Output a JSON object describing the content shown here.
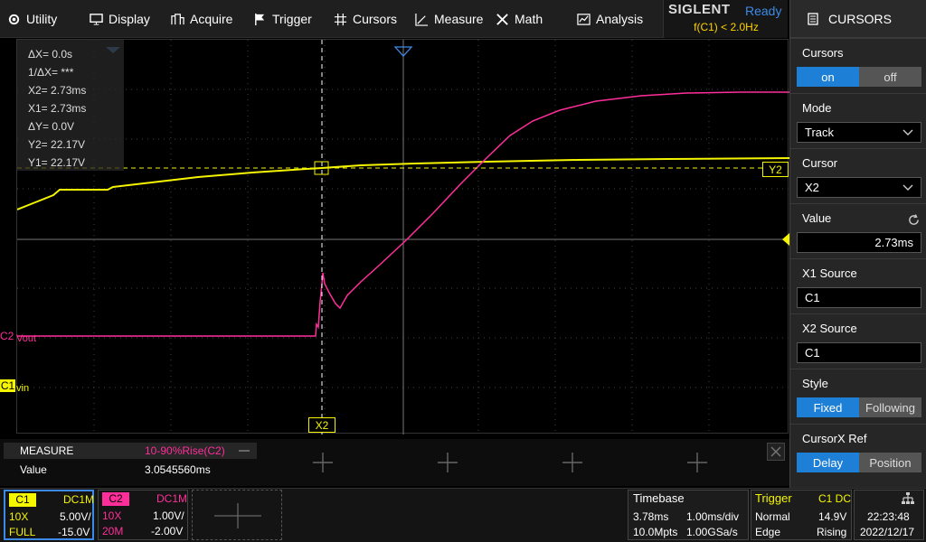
{
  "menu": {
    "utility": "Utility",
    "display": "Display",
    "acquire": "Acquire",
    "trigger": "Trigger",
    "cursors": "Cursors",
    "measure": "Measure",
    "math": "Math",
    "analysis": "Analysis"
  },
  "brand": {
    "logo": "SIGLENT",
    "status": "Ready",
    "trigger_freq": "f(C1) < 2.0Hz"
  },
  "panel": {
    "title": "CURSORS",
    "cursors_label": "Cursors",
    "cursors_on": "on",
    "cursors_off": "off",
    "mode_label": "Mode",
    "mode_value": "Track",
    "cursor_label": "Cursor",
    "cursor_value": "X2",
    "value_label": "Value",
    "value_value": "2.73ms",
    "x1source_label": "X1 Source",
    "x1source_value": "C1",
    "x2source_label": "X2 Source",
    "x2source_value": "C1",
    "style_label": "Style",
    "style_fixed": "Fixed",
    "style_following": "Following",
    "cursorxref_label": "CursorX Ref",
    "ref_delay": "Delay",
    "ref_position": "Position"
  },
  "readout": {
    "dx": "ΔX= 0.0s",
    "inv_dx": "1/ΔX= ***",
    "x2": "X2= 2.73ms",
    "x1": "X1= 2.73ms",
    "dy": "ΔY= 0.0V",
    "y2": "Y2= 22.17V",
    "y1": "Y1= 22.17V"
  },
  "plot": {
    "x2_tag": "X2",
    "y2_tag": "Y2",
    "c2_marker": "C2",
    "c2_name": "Vout",
    "c1_marker": "C1",
    "c1_name": "vin"
  },
  "measure": {
    "header": "MEASURE",
    "item": "10-90%Rise(C2)",
    "value_label": "Value",
    "value": "3.0545560ms"
  },
  "channels": {
    "c1": {
      "name": "C1",
      "coupling": "DC1M",
      "probe": "10X",
      "scale": "5.00V/",
      "bw": "FULL",
      "offset": "-15.0V"
    },
    "c2": {
      "name": "C2",
      "coupling": "DC1M",
      "probe": "10X",
      "scale": "1.00V/",
      "bw": "20M",
      "offset": "-2.00V"
    }
  },
  "timebase": {
    "label": "Timebase",
    "delay": "3.78ms",
    "scale": "1.00ms/div",
    "depth": "10.0Mpts",
    "rate": "1.00GSa/s"
  },
  "trigger": {
    "label": "Trigger",
    "source": "C1 DC",
    "mode": "Normal",
    "level": "14.9V",
    "type": "Edge",
    "slope": "Rising"
  },
  "clock": {
    "time": "22:23:48",
    "date": "2022/12/17"
  },
  "colors": {
    "c1": "#f5f500",
    "c2": "#ff2e9a",
    "accent": "#1e7fd6"
  }
}
